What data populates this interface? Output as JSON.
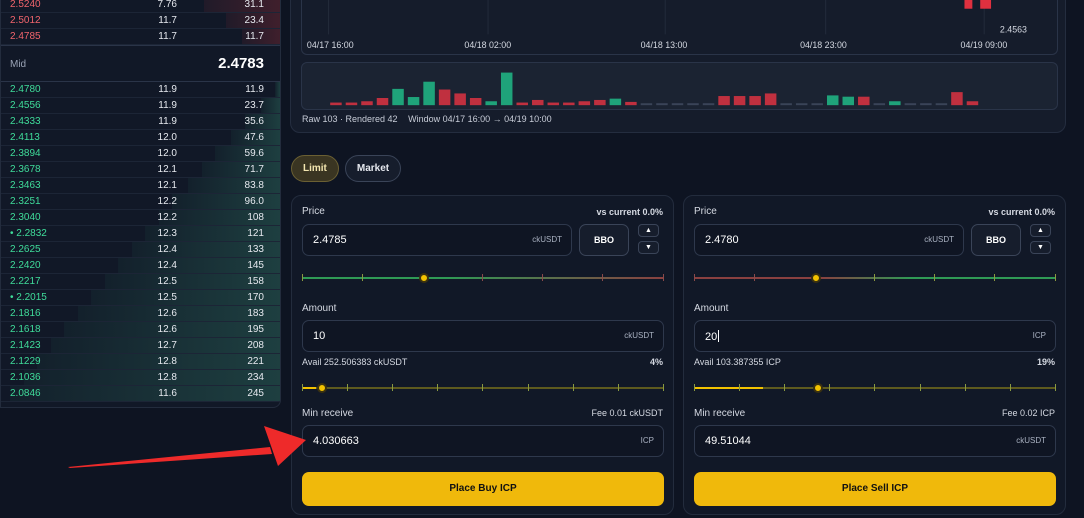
{
  "orderbook": {
    "asks": [
      {
        "price": "2.5240",
        "qty": "7.76",
        "total": "31.1",
        "depth": 0.28
      },
      {
        "price": "2.5012",
        "qty": "11.7",
        "total": "23.4",
        "depth": 0.2
      },
      {
        "price": "2.4785",
        "qty": "11.7",
        "total": "11.7",
        "depth": 0.14
      }
    ],
    "mid_label": "Mid",
    "mid_value": "2.4783",
    "bids": [
      {
        "price": "2.4780",
        "qty": "11.9",
        "total": "11.9",
        "depth": 0.02
      },
      {
        "price": "2.4556",
        "qty": "11.9",
        "total": "23.7",
        "depth": 0.07
      },
      {
        "price": "2.4333",
        "qty": "11.9",
        "total": "35.6",
        "depth": 0.13
      },
      {
        "price": "2.4113",
        "qty": "12.0",
        "total": "47.6",
        "depth": 0.18
      },
      {
        "price": "2.3894",
        "qty": "12.0",
        "total": "59.6",
        "depth": 0.24
      },
      {
        "price": "2.3678",
        "qty": "12.1",
        "total": "71.7",
        "depth": 0.29
      },
      {
        "price": "2.3463",
        "qty": "12.1",
        "total": "83.8",
        "depth": 0.34
      },
      {
        "price": "2.3251",
        "qty": "12.2",
        "total": "96.0",
        "depth": 0.4
      },
      {
        "price": "2.3040",
        "qty": "12.2",
        "total": "108",
        "depth": 0.45
      },
      {
        "price": "• 2.2832",
        "qty": "12.3",
        "total": "121",
        "depth": 0.5
      },
      {
        "price": "2.2625",
        "qty": "12.4",
        "total": "133",
        "depth": 0.55
      },
      {
        "price": "2.2420",
        "qty": "12.4",
        "total": "145",
        "depth": 0.6
      },
      {
        "price": "2.2217",
        "qty": "12.5",
        "total": "158",
        "depth": 0.65
      },
      {
        "price": "• 2.2015",
        "qty": "12.5",
        "total": "170",
        "depth": 0.7
      },
      {
        "price": "2.1816",
        "qty": "12.6",
        "total": "183",
        "depth": 0.75
      },
      {
        "price": "2.1618",
        "qty": "12.6",
        "total": "195",
        "depth": 0.8
      },
      {
        "price": "2.1423",
        "qty": "12.7",
        "total": "208",
        "depth": 0.85
      },
      {
        "price": "2.1229",
        "qty": "12.8",
        "total": "221",
        "depth": 0.9
      },
      {
        "price": "2.1036",
        "qty": "12.8",
        "total": "234",
        "depth": 0.95
      },
      {
        "price": "2.0846",
        "qty": "11.6",
        "total": "245",
        "depth": 1.0
      }
    ]
  },
  "chart": {
    "x_ticks": [
      "04/17 16:00",
      "04/18 02:00",
      "04/18 13:00",
      "04/18 23:00",
      "04/19 09:00"
    ],
    "last_price_label": "2.4563",
    "footer_raw": "Raw 103 · Rendered 42",
    "footer_window": "Window 04/17 16:00 → 04/19 10:00",
    "volume_bars": [
      {
        "v": 0.08,
        "c": "red"
      },
      {
        "v": 0.08,
        "c": "red"
      },
      {
        "v": 0.12,
        "c": "red"
      },
      {
        "v": 0.22,
        "c": "red"
      },
      {
        "v": 0.5,
        "c": "green"
      },
      {
        "v": 0.25,
        "c": "green"
      },
      {
        "v": 0.72,
        "c": "green"
      },
      {
        "v": 0.48,
        "c": "red"
      },
      {
        "v": 0.36,
        "c": "red"
      },
      {
        "v": 0.22,
        "c": "red"
      },
      {
        "v": 0.12,
        "c": "green"
      },
      {
        "v": 1.0,
        "c": "green"
      },
      {
        "v": 0.08,
        "c": "red"
      },
      {
        "v": 0.16,
        "c": "red"
      },
      {
        "v": 0.08,
        "c": "red"
      },
      {
        "v": 0.08,
        "c": "red"
      },
      {
        "v": 0.12,
        "c": "red"
      },
      {
        "v": 0.16,
        "c": "red"
      },
      {
        "v": 0.2,
        "c": "green"
      },
      {
        "v": 0.1,
        "c": "red"
      },
      {
        "v": 0.04,
        "c": "grey"
      },
      {
        "v": 0.06,
        "c": "grey"
      },
      {
        "v": 0.06,
        "c": "grey"
      },
      {
        "v": 0.06,
        "c": "grey"
      },
      {
        "v": 0.06,
        "c": "grey"
      },
      {
        "v": 0.28,
        "c": "red"
      },
      {
        "v": 0.28,
        "c": "red"
      },
      {
        "v": 0.28,
        "c": "red"
      },
      {
        "v": 0.36,
        "c": "red"
      },
      {
        "v": 0.04,
        "c": "grey"
      },
      {
        "v": 0.04,
        "c": "grey"
      },
      {
        "v": 0.04,
        "c": "grey"
      },
      {
        "v": 0.3,
        "c": "green"
      },
      {
        "v": 0.26,
        "c": "green"
      },
      {
        "v": 0.26,
        "c": "red"
      },
      {
        "v": 0.06,
        "c": "grey"
      },
      {
        "v": 0.12,
        "c": "green"
      },
      {
        "v": 0.06,
        "c": "grey"
      },
      {
        "v": 0.06,
        "c": "grey"
      },
      {
        "v": 0.04,
        "c": "grey"
      },
      {
        "v": 0.4,
        "c": "red"
      },
      {
        "v": 0.12,
        "c": "red"
      }
    ]
  },
  "tabs": [
    {
      "label": "Limit",
      "active": true
    },
    {
      "label": "Market",
      "active": false
    }
  ],
  "buy": {
    "price_label": "Price",
    "vs_current": "vs current 0.0%",
    "price_value": "2.4785",
    "price_unit": "ckUSDT",
    "bbo_label": "BBO",
    "amount_label": "Amount",
    "amount_value": "10",
    "amount_unit": "ckUSDT",
    "avail": "Avail 252.506383 ckUSDT",
    "pct": "4%",
    "pct_value": 0.04,
    "min_receive_label": "Min receive",
    "fee": "Fee 0.01 ckUSDT",
    "min_receive_value": "4.030663",
    "min_receive_unit": "ICP",
    "cta": "Place Buy ICP"
  },
  "sell": {
    "price_label": "Price",
    "vs_current": "vs current 0.0%",
    "price_value": "2.4780",
    "price_unit": "ckUSDT",
    "bbo_label": "BBO",
    "amount_label": "Amount",
    "amount_value": "20",
    "amount_unit": "ICP",
    "avail": "Avail 103.387355 ICP",
    "pct": "19%",
    "pct_value": 0.19,
    "min_receive_label": "Min receive",
    "fee": "Fee 0.02 ICP",
    "min_receive_value": "49.51044",
    "min_receive_unit": "ckUSDT",
    "cta": "Place Sell ICP"
  },
  "colors": {
    "accent": "#f0b90b",
    "ask": "#f0646c",
    "bid": "#3fdc9a",
    "annotation": "#ee2a2a"
  }
}
